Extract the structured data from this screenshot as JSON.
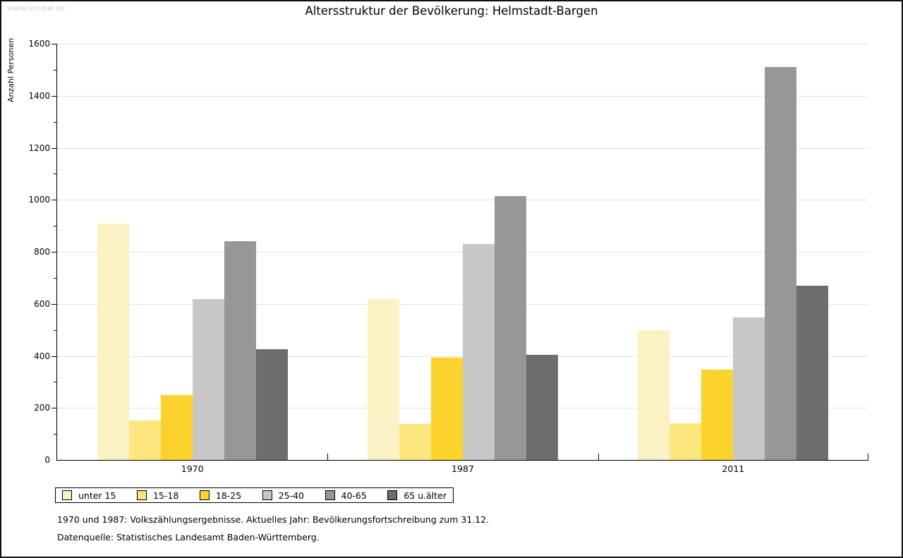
{
  "watermark": "www.leo-bw.de",
  "title": "Altersstruktur der Bevölkerung: Helmstadt-Bargen",
  "footnotes": {
    "line1": "1970 und 1987: Volkszählungsergebnisse. Aktuelles Jahr: Bevölkerungsfortschreibung zum 31.12.",
    "line2": "Datenquelle: Statistisches Landesamt Baden-Württemberg."
  },
  "chart_data": {
    "type": "bar",
    "title": "Altersstruktur der Bevölkerung: Helmstadt-Bargen",
    "xlabel": "",
    "ylabel": "Anzahl Personen",
    "ylim": [
      0,
      1600
    ],
    "ytick_step": 200,
    "ytick_minor_step": 100,
    "grid": true,
    "legend_position": "bottom-left",
    "categories": [
      "1970",
      "1987",
      "2011"
    ],
    "series": [
      {
        "name": "unter 15",
        "color": "#faf1c5",
        "values": [
          908,
          618,
          500
        ]
      },
      {
        "name": "15-18",
        "color": "#fbe77e",
        "values": [
          152,
          138,
          140
        ]
      },
      {
        "name": "18-25",
        "color": "#fcd32d",
        "values": [
          250,
          393,
          348
        ]
      },
      {
        "name": "25-40",
        "color": "#c7c7c7",
        "values": [
          618,
          830,
          547
        ]
      },
      {
        "name": "40-65",
        "color": "#979797",
        "values": [
          840,
          1013,
          1510
        ]
      },
      {
        "name": "65 u.älter",
        "color": "#6d6d6d",
        "values": [
          425,
          403,
          670
        ]
      }
    ]
  }
}
